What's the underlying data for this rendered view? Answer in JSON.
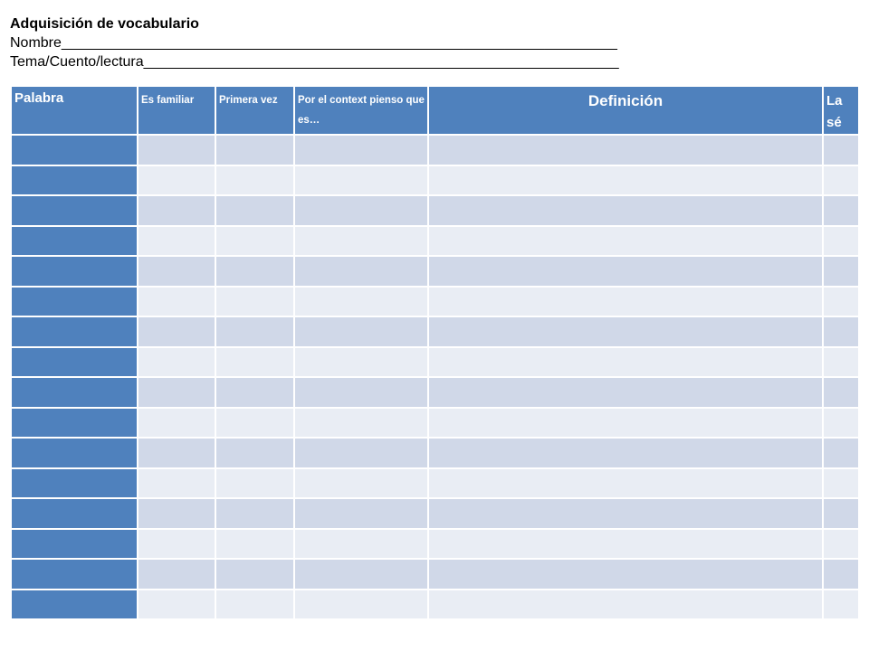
{
  "header": {
    "title": "Adquisición de vocabulario",
    "name_line": "Nombre_____________________________________________________________________",
    "topic_line": "Tema/Cuento/lectura___________________________________________________________"
  },
  "table": {
    "columns": [
      {
        "label": "Palabra"
      },
      {
        "label": "Es familiar"
      },
      {
        "label": "Primera vez"
      },
      {
        "label": "Por el context pienso que es…"
      },
      {
        "label": "Definición"
      },
      {
        "label": "La sé"
      }
    ],
    "row_count": 16,
    "colors": {
      "header": "#4f81bd",
      "first_column": "#4f81bd",
      "row_odd": "#d0d8e8",
      "row_even": "#e9edf4"
    }
  }
}
